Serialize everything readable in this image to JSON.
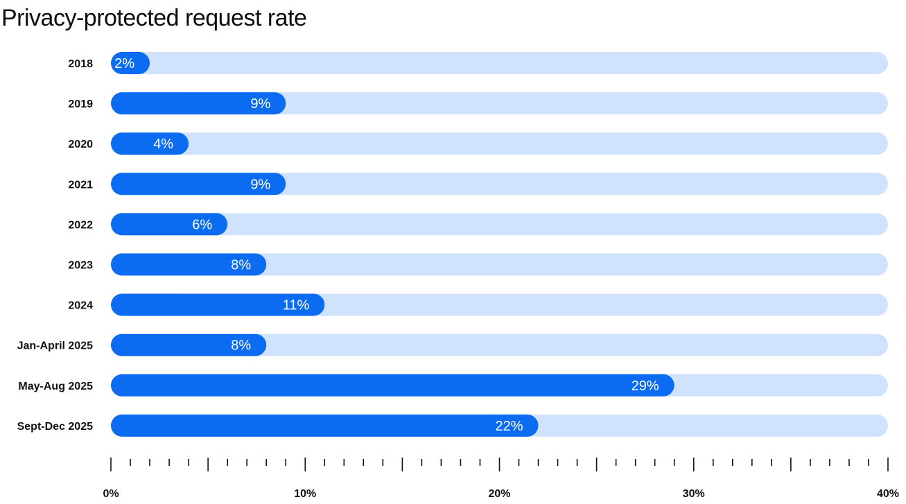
{
  "title": "Privacy-protected request rate",
  "colors": {
    "bar": "#0b6cf2",
    "track": "#d0e2fc",
    "axis": "#111111",
    "label_text": "#ffffff"
  },
  "chart_data": {
    "type": "bar",
    "orientation": "horizontal",
    "title": "Privacy-protected request rate",
    "xlabel": "",
    "ylabel": "",
    "xlim": [
      0,
      40
    ],
    "categories": [
      "2018",
      "2019",
      "2020",
      "2021",
      "2022",
      "2023",
      "2024",
      "Jan-April 2025",
      "May-Aug 2025",
      "Sept-Dec 2025"
    ],
    "values": [
      2,
      9,
      4,
      9,
      6,
      8,
      11,
      8,
      29,
      22
    ],
    "value_labels": [
      "2%",
      "9%",
      "4%",
      "9%",
      "6%",
      "8%",
      "11%",
      "8%",
      "29%",
      "22%"
    ],
    "x_ticks": [
      0,
      10,
      20,
      30,
      40
    ],
    "x_tick_labels": [
      "0%",
      "10%",
      "20%",
      "30%",
      "40%"
    ],
    "minor_tick_step": 1,
    "grid": false,
    "legend": "none"
  }
}
